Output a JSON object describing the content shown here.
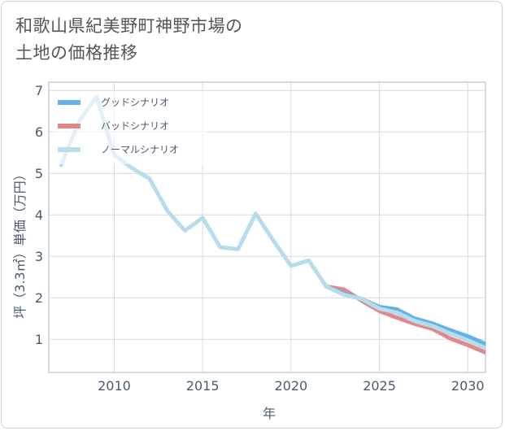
{
  "page": {
    "title_line1": "和歌山県紀美野町神野市場の",
    "title_line2": "土地の価格推移"
  },
  "chart_data": {
    "type": "line",
    "title": "和歌山県紀美野町神野市場の土地の価格推移",
    "xlabel": "年",
    "ylabel": "坪（3.3㎡）単価（万円）",
    "xlim": [
      2006.3,
      2031.0
    ],
    "ylim": [
      0.2,
      7.2
    ],
    "xticks": [
      2010,
      2015,
      2020,
      2025,
      2030
    ],
    "yticks": [
      1,
      2,
      3,
      4,
      5,
      6,
      7
    ],
    "grid": true,
    "legend_position": "top-left",
    "series": [
      {
        "name": "グッドシナリオ",
        "color": "#63b3e8",
        "x": [
          2022,
          2023,
          2024,
          2025,
          2026,
          2027,
          2028,
          2029,
          2030,
          2031
        ],
        "values": [
          2.27,
          2.1,
          1.97,
          1.78,
          1.72,
          1.5,
          1.38,
          1.22,
          1.07,
          0.89
        ]
      },
      {
        "name": "バッドシナリオ",
        "color": "#e0888c",
        "x": [
          2022,
          2023,
          2024,
          2025,
          2026,
          2027,
          2028,
          2029,
          2030,
          2031
        ],
        "values": [
          2.27,
          2.2,
          1.93,
          1.68,
          1.52,
          1.37,
          1.25,
          1.02,
          0.86,
          0.68
        ]
      },
      {
        "name": "ノーマルシナリオ",
        "color": "#b9dcea",
        "x": [
          2007,
          2008,
          2009,
          2010,
          2011,
          2012,
          2013,
          2014,
          2015,
          2016,
          2017,
          2018,
          2019,
          2020,
          2021,
          2022,
          2023,
          2024,
          2025,
          2026,
          2027,
          2028,
          2029,
          2030,
          2031
        ],
        "values": [
          5.2,
          6.25,
          6.85,
          5.45,
          5.13,
          4.87,
          4.1,
          3.62,
          3.93,
          3.22,
          3.17,
          4.03,
          3.38,
          2.77,
          2.9,
          2.27,
          2.07,
          1.97,
          1.74,
          1.64,
          1.44,
          1.32,
          1.14,
          0.97,
          0.79
        ]
      }
    ]
  }
}
